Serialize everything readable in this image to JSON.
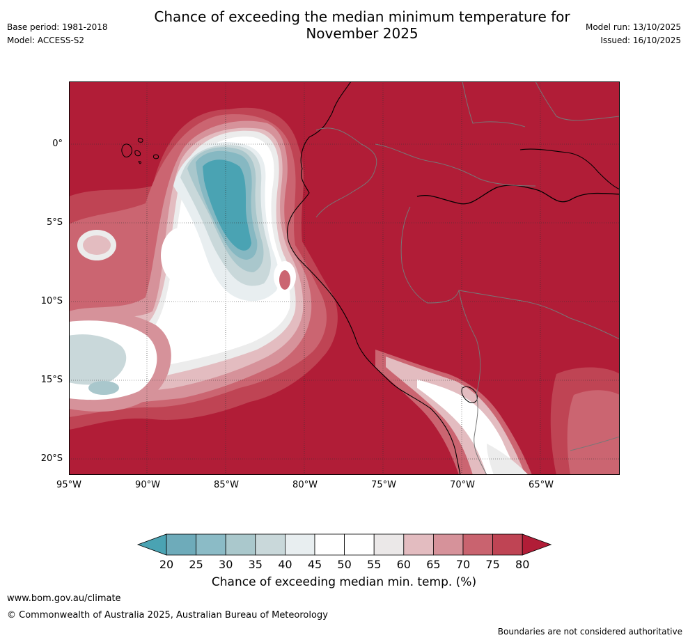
{
  "header": {
    "title_line1": "Chance of exceeding the median minimum temperature for",
    "title_line2": "November 2025",
    "base_period": "Base period: 1981-2018",
    "model": "Model: ACCESS-S2",
    "model_run": "Model run: 13/10/2025",
    "issued": "Issued: 16/10/2025"
  },
  "map": {
    "lat_labels": [
      "0°",
      "5°S",
      "10°S",
      "15°S",
      "20°S"
    ],
    "lon_labels": [
      "95°W",
      "90°W",
      "85°W",
      "80°W",
      "75°W",
      "70°W",
      "65°W"
    ],
    "colors": {
      "high": "#b11d37",
      "c75": "#bf4454",
      "c70": "#cb6571",
      "c65": "#d6929a",
      "c60": "#e3bcc0",
      "c55": "#ececec",
      "c50": "#ffffff",
      "c40": "#e8eef0",
      "c35": "#c9d8da",
      "c30": "#a9c7cc",
      "c25": "#86b8c2",
      "low": "#4aa3b3",
      "coast": "#000000",
      "border": "#777777",
      "grid": "#333333"
    }
  },
  "legend": {
    "ticks": [
      "20",
      "25",
      "30",
      "35",
      "40",
      "45",
      "50",
      "55",
      "60",
      "65",
      "70",
      "75",
      "80"
    ],
    "colors": [
      "#4aa3b3",
      "#6eabba",
      "#8bbbc6",
      "#aac8cc",
      "#c9d8da",
      "#e8eef0",
      "#ffffff",
      "#ffffff",
      "#ebe8e8",
      "#e3bcc0",
      "#d6929a",
      "#c9636f",
      "#bf4454",
      "#b11d37"
    ],
    "title": "Chance of exceeding median min. temp. (%)"
  },
  "footer": {
    "url": "www.bom.gov.au/climate",
    "copyright": "© Commonwealth of Australia 2025, Australian Bureau of Meteorology",
    "disclaimer": "Boundaries are not considered authoritative"
  }
}
